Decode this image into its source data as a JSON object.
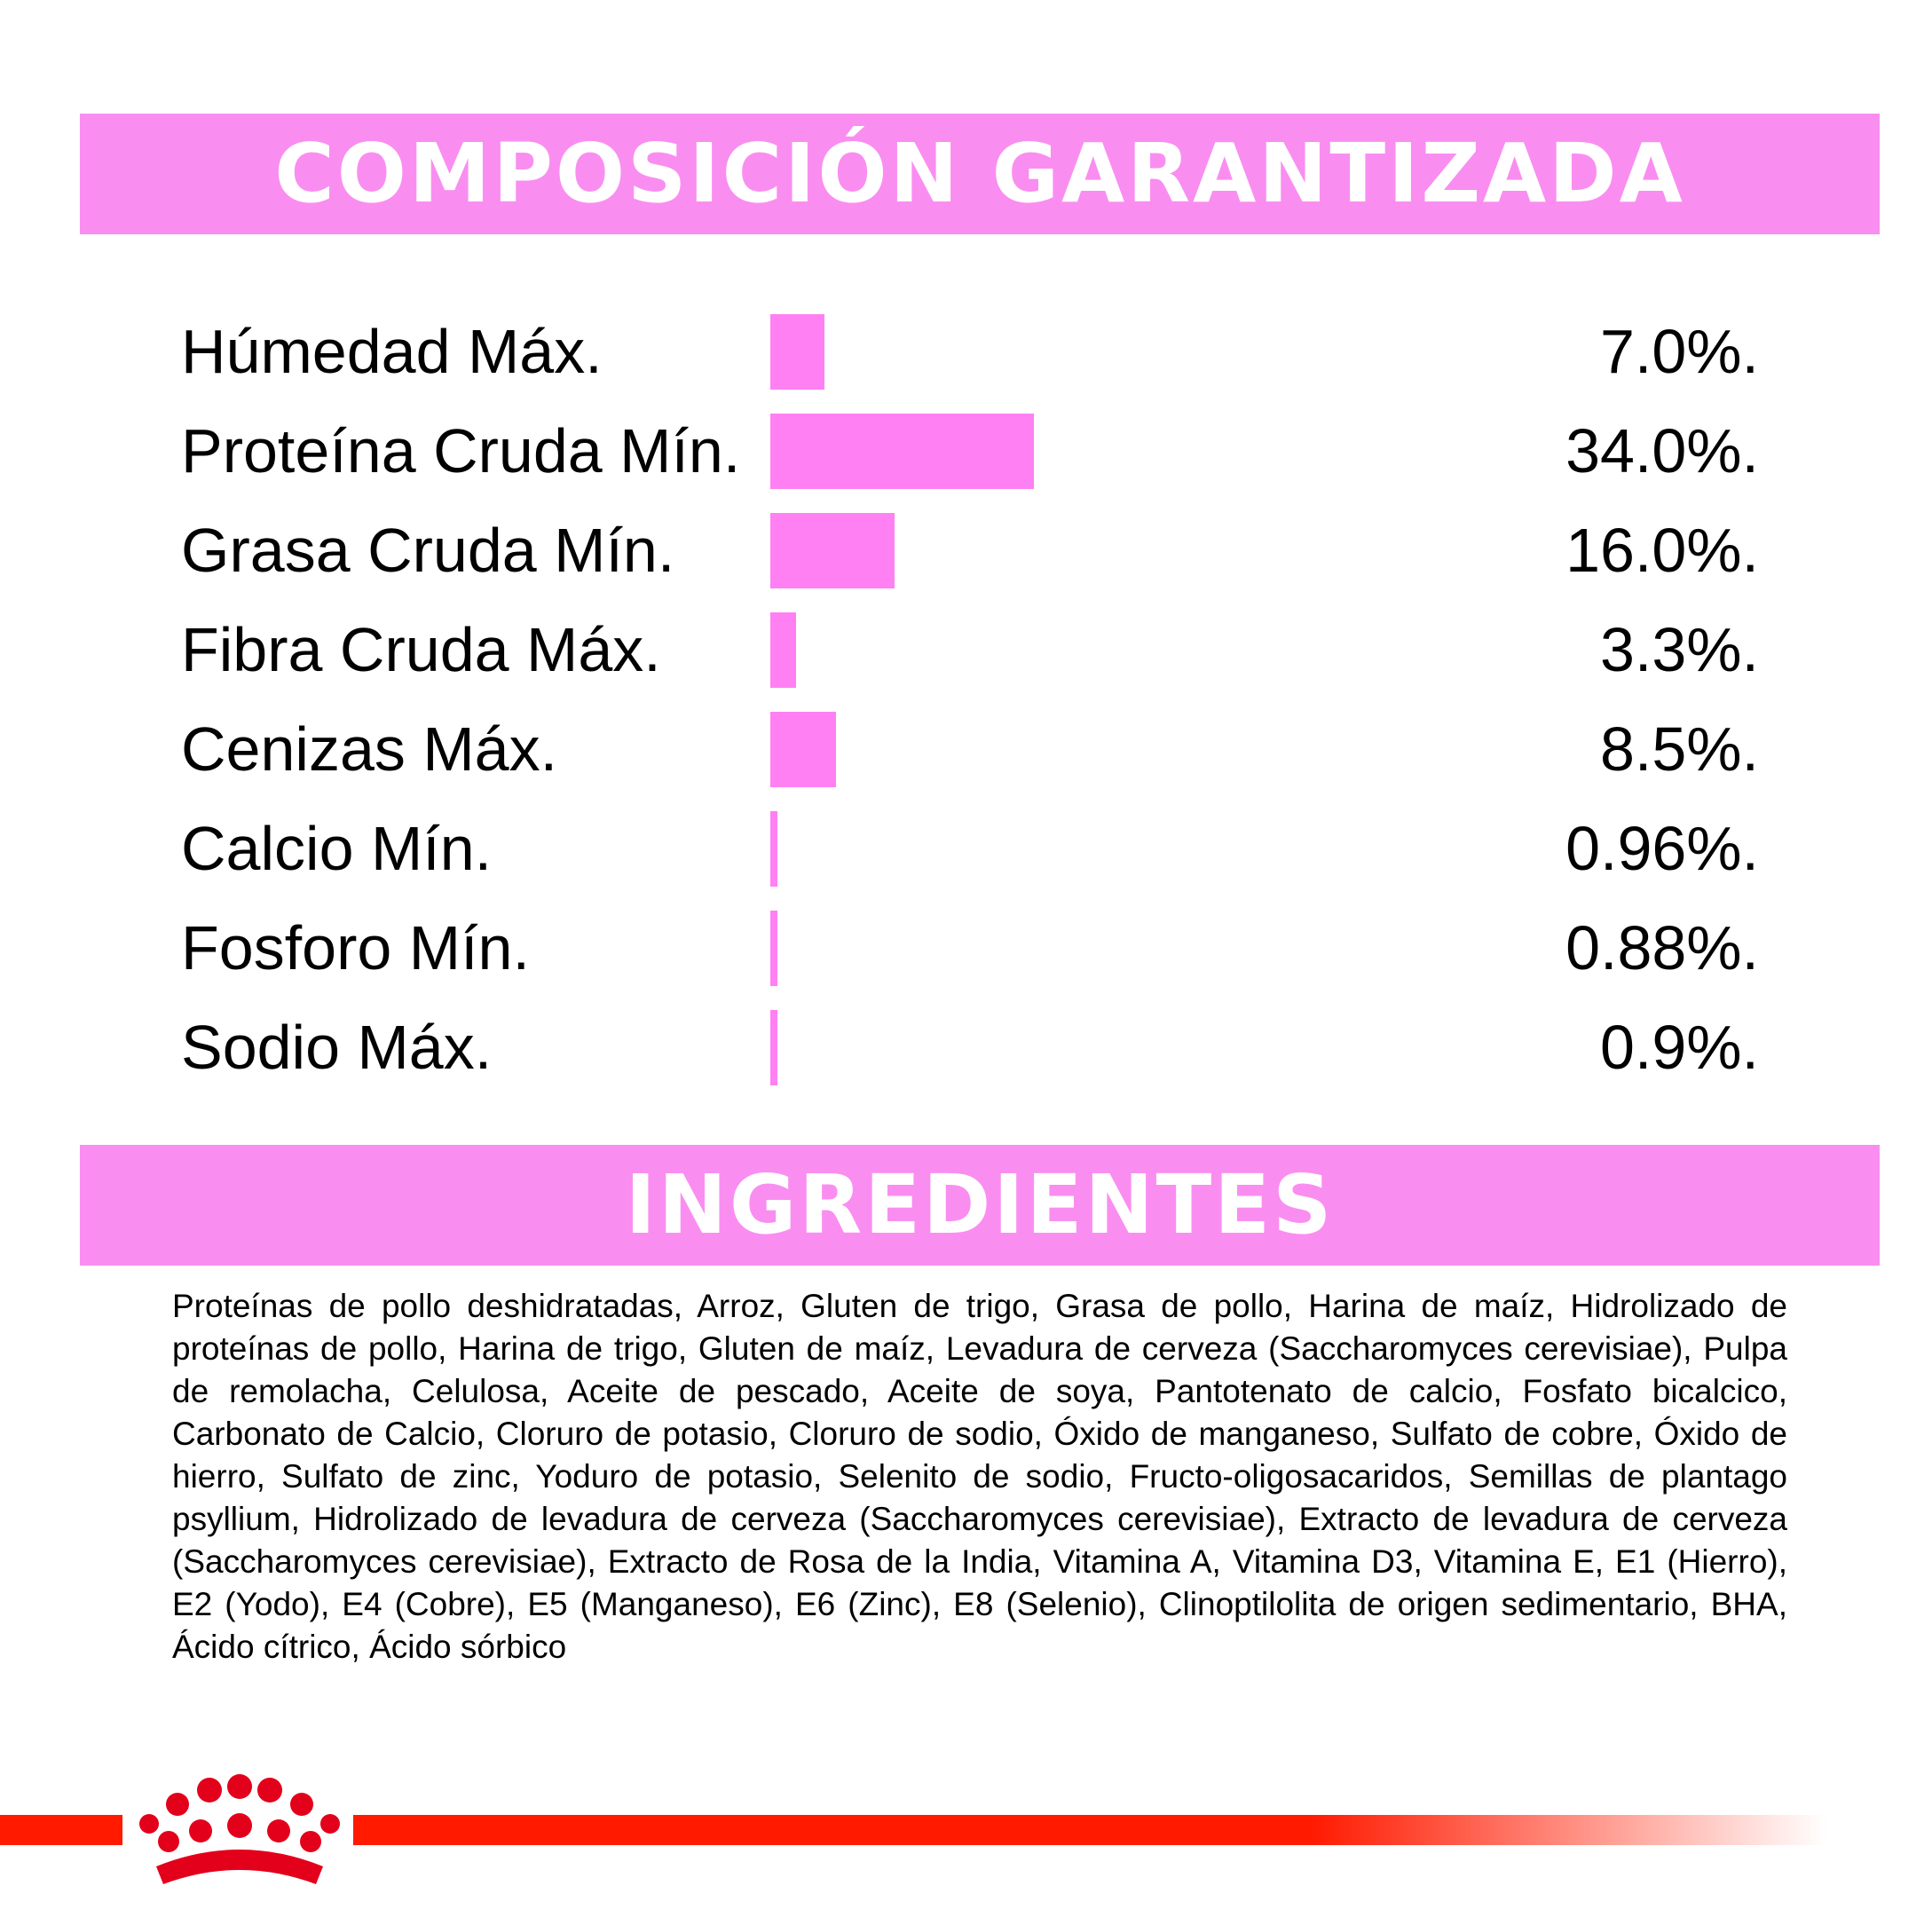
{
  "composition": {
    "title": "COMPOSICIÓN GARANTIZADA"
  },
  "chart_data": {
    "type": "bar",
    "orientation": "horizontal",
    "title": "COMPOSICIÓN GARANTIZADA",
    "categories": [
      "Húmedad Máx.",
      "Proteína Cruda Mín.",
      "Grasa Cruda Mín.",
      "Fibra Cruda Máx.",
      "Cenizas Máx.",
      "Calcio Mín.",
      "Fosforo Mín.",
      "Sodio Máx."
    ],
    "values": [
      7.0,
      34.0,
      16.0,
      3.3,
      8.5,
      0.96,
      0.88,
      0.9
    ],
    "value_labels": [
      "7.0%.",
      "34.0%.",
      "16.0%.",
      "3.3%.",
      "8.5%.",
      "0.96%.",
      "0.88%.",
      "0.9%."
    ],
    "unit": "%",
    "bar_color": "#ff80f3",
    "grid": false,
    "legend": "none"
  },
  "ingredients": {
    "title": "INGREDIENTES",
    "text": "Proteínas de pollo deshidratadas, Arroz, Gluten de trigo, Grasa de pollo, Harina de maíz, Hidrolizado de proteínas de pollo, Harina de trigo, Gluten de maíz, Levadura de cerveza (Saccharomyces cerevisiae), Pulpa de remolacha, Celulosa, Aceite de pescado, Aceite de soya, Pantotenato de calcio, Fosfato bicalcico, Carbonato de Calcio, Cloruro de potasio, Cloruro de sodio, Óxido de manganeso, Sulfato de cobre, Óxido de hierro, Sulfato de zinc, Yoduro de potasio, Selenito de sodio, Fructo-oligosacaridos, Semillas de plantago psyllium, Hidrolizado de levadura de cerveza (Saccharomyces cerevisiae), Extracto de levadura de cerveza (Saccharomyces cerevisiae), Extracto de Rosa de la India, Vitamina A, Vitamina D3, Vitamina E, E1 (Hierro), E2 (Yodo), E4 (Cobre), E5 (Manganeso), E6 (Zinc), E8 (Selenio), Clinoptilolita de origen sedimentario, BHA, Ácido cítrico, Ácido sórbico"
  },
  "colors": {
    "banner": "#f98ef0",
    "bar": "#ff80f3",
    "brand_red": "#ff1a00"
  },
  "logo": {
    "icon": "crown-icon"
  }
}
